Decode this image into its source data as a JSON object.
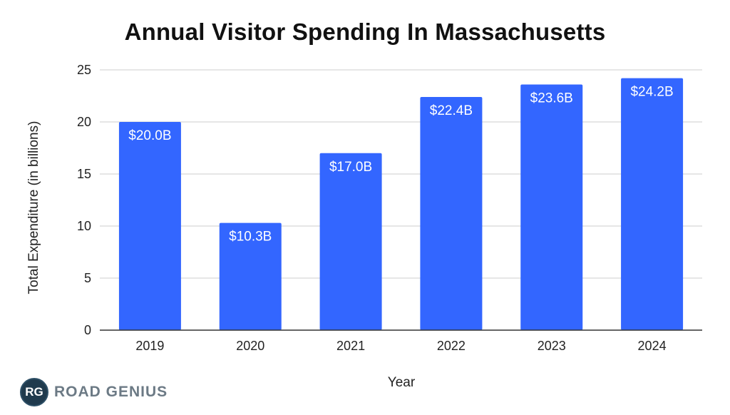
{
  "colors": {
    "bar": "#3366ff",
    "grid": "#cccccc",
    "axis": "#333333",
    "label_text": "#ffffff"
  },
  "chart_data": {
    "type": "bar",
    "title": "Annual Visitor Spending In Massachusetts",
    "xlabel": "Year",
    "ylabel": "Total Expenditure (in billions)",
    "categories": [
      "2019",
      "2020",
      "2021",
      "2022",
      "2023",
      "2024"
    ],
    "values": [
      20.0,
      10.3,
      17.0,
      22.4,
      23.6,
      24.2
    ],
    "data_labels": [
      "$20.0B",
      "$10.3B",
      "$17.0B",
      "$22.4B",
      "$23.6B",
      "$24.2B"
    ],
    "ylim": [
      0,
      25
    ],
    "yticks": [
      0,
      5,
      10,
      15,
      20,
      25
    ],
    "grid": true,
    "legend": "none"
  },
  "logo": {
    "mark": "RG",
    "text": "ROAD GENIUS"
  }
}
